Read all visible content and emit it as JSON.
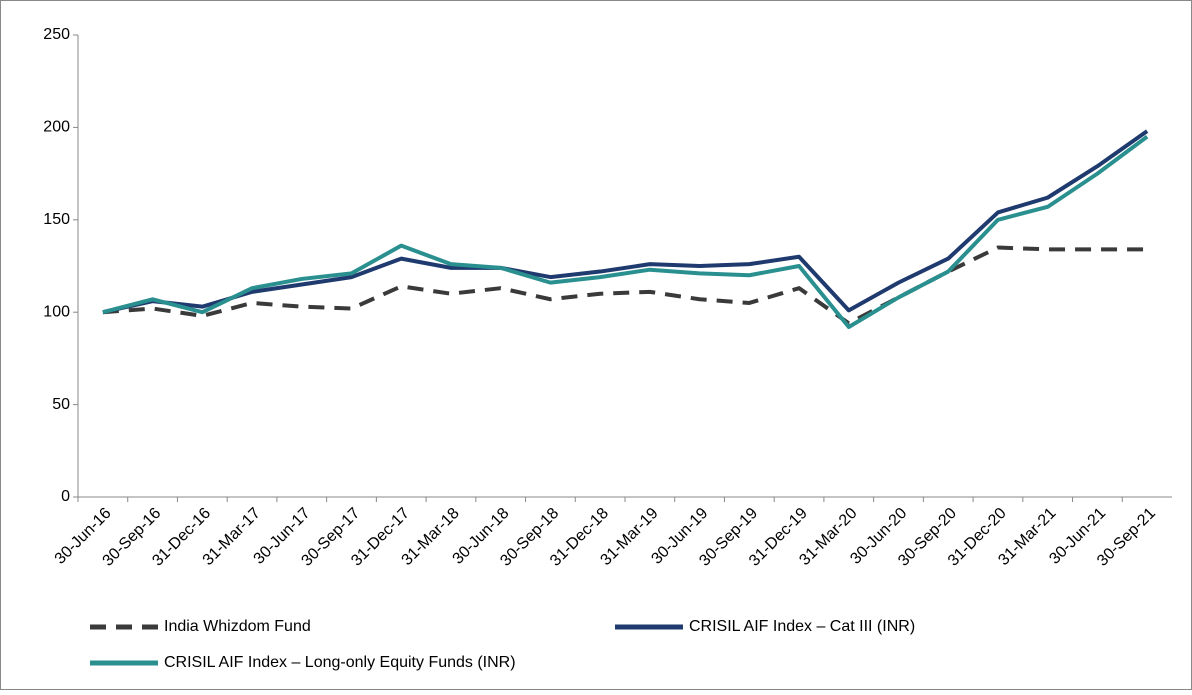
{
  "chart_data": {
    "type": "line",
    "categories": [
      "30-Jun-16",
      "30-Sep-16",
      "31-Dec-16",
      "31-Mar-17",
      "30-Jun-17",
      "30-Sep-17",
      "31-Dec-17",
      "31-Mar-18",
      "30-Jun-18",
      "30-Sep-18",
      "31-Dec-18",
      "31-Mar-19",
      "30-Jun-19",
      "30-Sep-19",
      "31-Dec-19",
      "31-Mar-20",
      "30-Jun-20",
      "30-Sep-20",
      "31-Dec-20",
      "31-Mar-21",
      "30-Jun-21",
      "30-Sep-21"
    ],
    "series": [
      {
        "name": "India Whizdom Fund",
        "color": "#3a3a3a",
        "dashed": true,
        "values": [
          100,
          102,
          98,
          105,
          103,
          102,
          114,
          110,
          113,
          107,
          110,
          111,
          107,
          105,
          113,
          94,
          108,
          122,
          135,
          134,
          134,
          134
        ]
      },
      {
        "name": "CRISIL AIF Index – Cat III (INR)",
        "color": "#1f3a6e",
        "dashed": false,
        "values": [
          100,
          106,
          103,
          111,
          115,
          119,
          129,
          124,
          124,
          119,
          122,
          126,
          125,
          126,
          130,
          101,
          116,
          129,
          154,
          162,
          179,
          198
        ]
      },
      {
        "name": "CRISIL AIF Index – Long-only Equity Funds (INR)",
        "color": "#2a8f8f",
        "dashed": false,
        "values": [
          100,
          107,
          100,
          113,
          118,
          121,
          136,
          126,
          124,
          116,
          119,
          123,
          121,
          120,
          125,
          92,
          108,
          122,
          150,
          157,
          175,
          195
        ]
      }
    ],
    "ylim": [
      0,
      250
    ],
    "yticks": [
      0,
      50,
      100,
      150,
      200,
      250
    ],
    "grid": false
  }
}
